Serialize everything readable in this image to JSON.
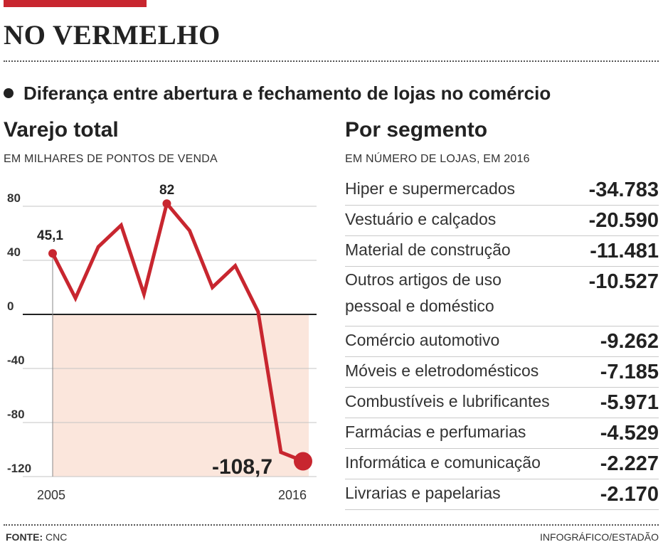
{
  "header": {
    "title": "NO VERMELHO",
    "subtitle": "Diferança entre abertura e fechamento de lojas no comércio"
  },
  "left_panel": {
    "title": "Varejo total",
    "unit": "EM MILHARES DE PONTOS DE VENDA"
  },
  "right_panel": {
    "title": "Por segmento",
    "unit": "EM NÚMERO DE LOJAS, EM 2016",
    "rows": [
      {
        "label": "Hiper e supermercados",
        "value": "-34.783"
      },
      {
        "label": "Vestuário e calçados",
        "value": "-20.590"
      },
      {
        "label": "Material de construção",
        "value": "-11.481"
      },
      {
        "label": "Outros artigos de uso pessoal e doméstico",
        "value": "-10.527"
      },
      {
        "label": "Comércio automotivo",
        "value": "-9.262"
      },
      {
        "label": "Móveis e eletrodomésticos",
        "value": "-7.185"
      },
      {
        "label": "Combustíveis e lubrificantes",
        "value": "-5.971"
      },
      {
        "label": "Farmácias e perfumarias",
        "value": "-4.529"
      },
      {
        "label": "Informática e comunicação",
        "value": "-2.227"
      },
      {
        "label": "Livrarias e papelarias",
        "value": "-2.170"
      }
    ]
  },
  "chart_data": {
    "type": "line",
    "title": "Varejo total",
    "subtitle": "EM MILHARES DE PONTOS DE VENDA",
    "x": [
      2005,
      2006,
      2007,
      2008,
      2009,
      2010,
      2011,
      2012,
      2013,
      2014,
      2015,
      2016
    ],
    "x_tick_labels": [
      "2005",
      "2016"
    ],
    "y": [
      45.1,
      12,
      50,
      66,
      15,
      82,
      62,
      20,
      36,
      2,
      -102,
      -108.7
    ],
    "ylim": [
      -120,
      80
    ],
    "yticks": [
      80,
      40,
      0,
      -40,
      -80,
      -120
    ],
    "ytick_labels": [
      "80",
      "40",
      "0",
      "-40",
      "-80",
      "-120"
    ],
    "data_labels": [
      {
        "x": 2005,
        "text": "45,1"
      },
      {
        "x": 2010,
        "text": "82"
      },
      {
        "x": 2016,
        "text": "-108,7"
      }
    ],
    "colors": {
      "line": "#c8262f",
      "negative_fill": "#fbe6dc"
    },
    "grid": true
  },
  "footer": {
    "source_label": "FONTE:",
    "source": "CNC",
    "credit": "INFOGRÁFICO/ESTADÃO"
  },
  "colors": {
    "accent": "#c8262f"
  }
}
